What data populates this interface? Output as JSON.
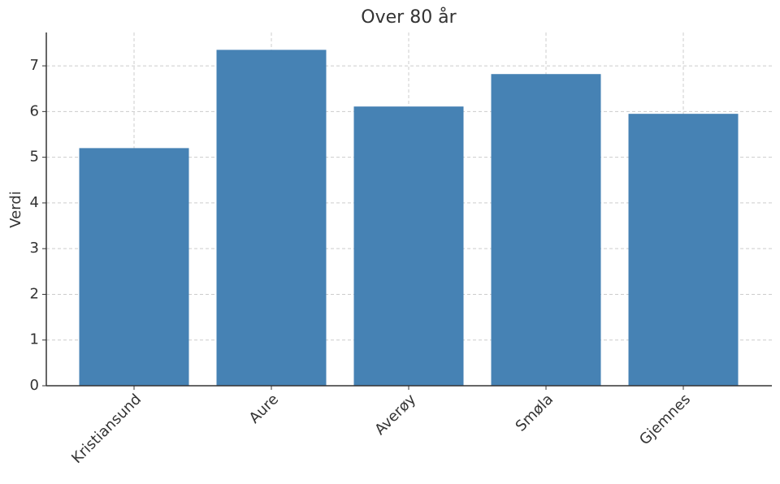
{
  "chart_data": {
    "type": "bar",
    "title": "Over 80 år",
    "y_label": "Verdi",
    "categories": [
      "Kristiansund",
      "Aure",
      "Averøy",
      "Smøla",
      "Gjemnes"
    ],
    "values": [
      5.2,
      7.35,
      6.11,
      6.82,
      5.95
    ],
    "color": "#4682b4",
    "ylim": [
      0,
      7.73
    ],
    "yticks": [
      0,
      1,
      2,
      3,
      4,
      5,
      6,
      7
    ],
    "grid": true
  }
}
